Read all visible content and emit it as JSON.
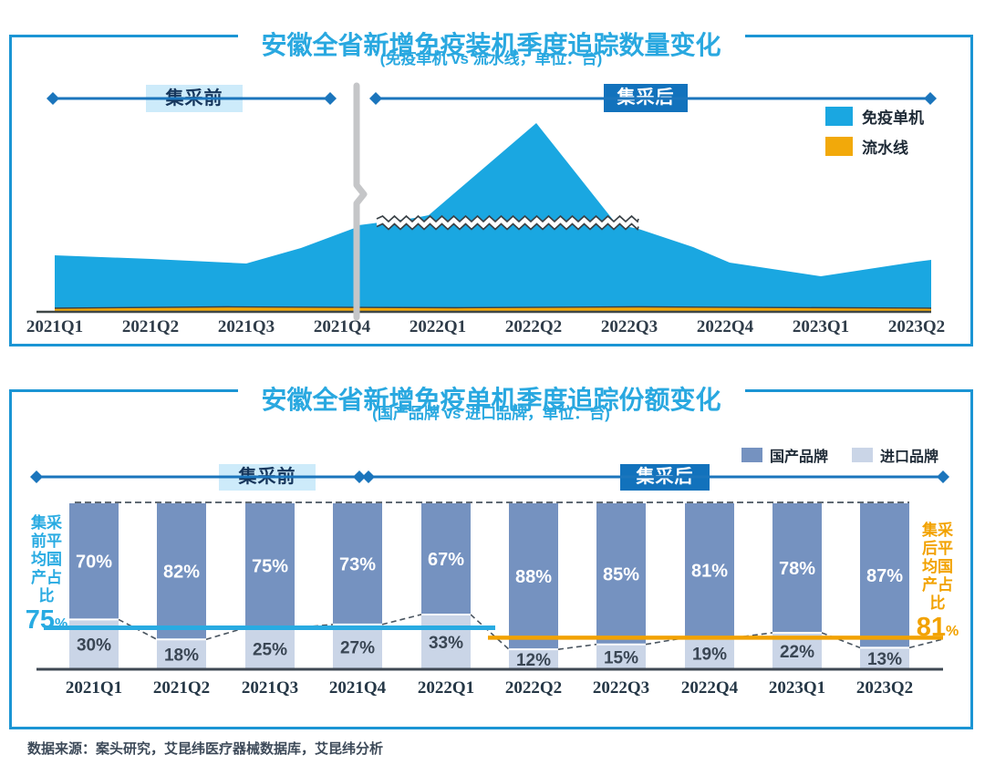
{
  "labels": {
    "pre": "集采前",
    "post": "集采后",
    "percent": "%"
  },
  "colors": {
    "title_blue": "#29A8E0",
    "card_border": "#1B95D4",
    "area_blue": "#1AA7E1",
    "line_yellow": "#F2A90A",
    "arrow_blue": "#1B75BC",
    "pre_tag_bg": "#CDEBFA",
    "post_tag_bg": "#1272BC",
    "domestic_bar": "#7592C0",
    "import_bar": "#CAD5E7",
    "avg_pre_line": "#29ABE2",
    "avg_post_line": "#F2A200",
    "axis": "#3F4747",
    "text_dark": "#2F3C49"
  },
  "chart_data": [
    {
      "id": "installations-quantity",
      "type": "area",
      "title": "安徽全省新增免疫装机季度追踪数量变化",
      "subtitle": "(免疫单机 vs 流水线，单位：台)",
      "categories": [
        "2021Q1",
        "2021Q2",
        "2021Q3",
        "2021Q4",
        "2022Q1",
        "2022Q2",
        "2022Q3",
        "2022Q4",
        "2023Q1",
        "2023Q2"
      ],
      "series": [
        {
          "name": "免疫单机",
          "color": "#1AA7E1",
          "values_relative_pct_of_peak": [
            30,
            27,
            25,
            44,
            48,
            100,
            44,
            26,
            18,
            27
          ]
        },
        {
          "name": "流水线",
          "color": "#F2A90A",
          "values_relative_pct_of_peak": [
            2,
            2,
            2,
            2,
            2,
            2,
            2,
            2,
            2,
            2
          ]
        }
      ],
      "y_axis_visible": false,
      "axis_break_after": "2021Q4",
      "period_annotations": [
        "集采前",
        "集采后"
      ],
      "legend_position": "top-right"
    },
    {
      "id": "domestic-share",
      "type": "bar",
      "stacked": true,
      "unit": "%",
      "title": "安徽全省新增免疫单机季度追踪份额变化",
      "subtitle": "(国产品牌 vs 进口品牌，单位：台)",
      "categories": [
        "2021Q1",
        "2021Q2",
        "2021Q3",
        "2021Q4",
        "2022Q1",
        "2022Q2",
        "2022Q3",
        "2022Q4",
        "2023Q1",
        "2023Q2"
      ],
      "series": [
        {
          "name": "国产品牌",
          "color": "#7592C0",
          "values": [
            70,
            82,
            75,
            73,
            67,
            88,
            85,
            81,
            78,
            87
          ]
        },
        {
          "name": "进口品牌",
          "color": "#CAD5E7",
          "values": [
            30,
            18,
            25,
            27,
            33,
            12,
            15,
            19,
            22,
            13
          ]
        }
      ],
      "reference_lines": [
        {
          "label": "集采前平均国产占比",
          "value": 75,
          "value_text": "75",
          "color": "#29ABE2"
        },
        {
          "label": "集采后平均国产占比",
          "value": 81,
          "value_text": "81",
          "color": "#F2A200"
        }
      ],
      "ylim": [
        0,
        100
      ],
      "period_annotations": [
        "集采前",
        "集采后"
      ],
      "legend_position": "top-right"
    }
  ],
  "footer": "数据来源：案头研究，艾昆纬医疗器械数据库，艾昆纬分析"
}
